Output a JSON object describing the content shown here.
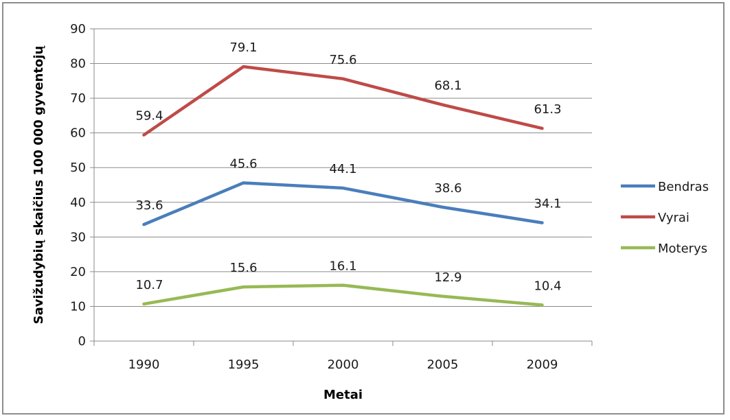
{
  "chart_data": {
    "type": "line",
    "x": [
      "1990",
      "1995",
      "2000",
      "2005",
      "2009"
    ],
    "series": [
      {
        "name": "Bendras",
        "values": [
          33.6,
          45.6,
          44.1,
          38.6,
          34.1
        ],
        "color": "#4a7ebb"
      },
      {
        "name": "Vyrai",
        "values": [
          59.4,
          79.1,
          75.6,
          68.1,
          61.3
        ],
        "color": "#be4b48"
      },
      {
        "name": "Moterys",
        "values": [
          10.7,
          15.6,
          16.1,
          12.9,
          10.4
        ],
        "color": "#98b954"
      }
    ],
    "xlabel": "Metai",
    "ylabel": "Savižudybių skaičius 100 000 gyventojų",
    "ylim": [
      0,
      90
    ],
    "yticks": [
      "0",
      "10",
      "20",
      "30",
      "40",
      "50",
      "60",
      "70",
      "80",
      "90"
    ],
    "grid": "horizontal",
    "legend_position": "right",
    "data_labels": true
  }
}
